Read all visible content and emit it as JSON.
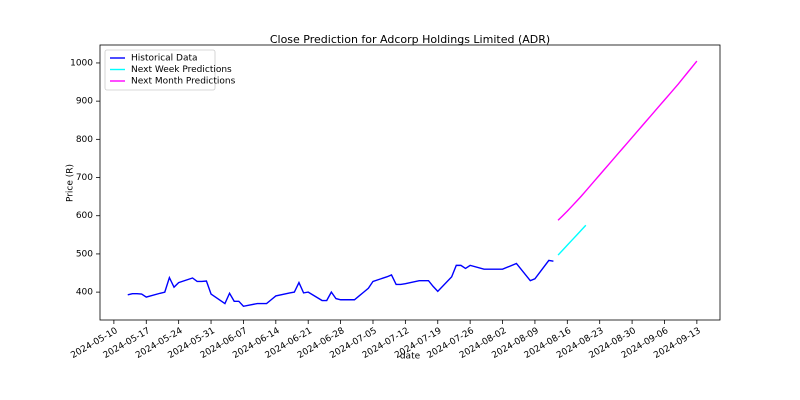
{
  "chart_data": {
    "type": "line",
    "title": "Close Prediction for Adcorp Holdings Limited (ADR)",
    "xlabel": "date",
    "ylabel": "Price (R)",
    "xlim": [
      "2024-05-07",
      "2024-09-18"
    ],
    "xticks": [
      "2024-05-10",
      "2024-05-17",
      "2024-05-24",
      "2024-05-31",
      "2024-06-07",
      "2024-06-14",
      "2024-06-21",
      "2024-06-28",
      "2024-07-05",
      "2024-07-12",
      "2024-07-19",
      "2024-07-26",
      "2024-08-02",
      "2024-08-09",
      "2024-08-16",
      "2024-08-23",
      "2024-08-30",
      "2024-09-06",
      "2024-09-13"
    ],
    "ylim": [
      327,
      1047
    ],
    "yticks": [
      400,
      500,
      600,
      700,
      800,
      900,
      1000
    ],
    "legend": "upper left",
    "series": [
      {
        "name": "Historical Data",
        "color": "#0000ff",
        "x": [
          "2024-05-13",
          "2024-05-14",
          "2024-05-15",
          "2024-05-16",
          "2024-05-17",
          "2024-05-20",
          "2024-05-21",
          "2024-05-22",
          "2024-05-23",
          "2024-05-24",
          "2024-05-27",
          "2024-05-28",
          "2024-05-29",
          "2024-05-30",
          "2024-05-31",
          "2024-06-03",
          "2024-06-04",
          "2024-06-05",
          "2024-06-06",
          "2024-06-07",
          "2024-06-10",
          "2024-06-11",
          "2024-06-12",
          "2024-06-13",
          "2024-06-14",
          "2024-06-17",
          "2024-06-18",
          "2024-06-19",
          "2024-06-20",
          "2024-06-21",
          "2024-06-24",
          "2024-06-25",
          "2024-06-26",
          "2024-06-27",
          "2024-06-28",
          "2024-07-01",
          "2024-07-02",
          "2024-07-03",
          "2024-07-04",
          "2024-07-05",
          "2024-07-08",
          "2024-07-09",
          "2024-07-10",
          "2024-07-11",
          "2024-07-12",
          "2024-07-15",
          "2024-07-16",
          "2024-07-17",
          "2024-07-18",
          "2024-07-19",
          "2024-07-22",
          "2024-07-23",
          "2024-07-24",
          "2024-07-25",
          "2024-07-26",
          "2024-07-29",
          "2024-07-30",
          "2024-07-31",
          "2024-08-01",
          "2024-08-02",
          "2024-08-05",
          "2024-08-06",
          "2024-08-07",
          "2024-08-08",
          "2024-08-09",
          "2024-08-12",
          "2024-08-13"
        ],
        "values": [
          393,
          396,
          396,
          395,
          387,
          397,
          400,
          438,
          413,
          425,
          437,
          428,
          428,
          429,
          395,
          370,
          397,
          376,
          376,
          363,
          370,
          370,
          370,
          380,
          390,
          398,
          400,
          425,
          398,
          400,
          378,
          378,
          400,
          383,
          380,
          380,
          390,
          400,
          410,
          428,
          440,
          445,
          420,
          420,
          422,
          430,
          430,
          430,
          415,
          402,
          440,
          470,
          470,
          462,
          470,
          460,
          460,
          460,
          460,
          460,
          475,
          460,
          445,
          430,
          435,
          483,
          481
        ]
      },
      {
        "name": "Next Week Predictions",
        "color": "#00ffff",
        "x": [
          "2024-08-14",
          "2024-08-15",
          "2024-08-16",
          "2024-08-17",
          "2024-08-18",
          "2024-08-19",
          "2024-08-20"
        ],
        "values": [
          497,
          510,
          523,
          536,
          549,
          562,
          575
        ]
      },
      {
        "name": "Next Month Predictions",
        "color": "#ff00ff",
        "x": [
          "2024-08-14",
          "2024-08-15",
          "2024-08-16",
          "2024-08-17",
          "2024-08-18",
          "2024-08-19",
          "2024-08-20",
          "2024-08-21",
          "2024-08-22",
          "2024-08-23",
          "2024-08-24",
          "2024-08-25",
          "2024-08-26",
          "2024-08-27",
          "2024-08-28",
          "2024-08-29",
          "2024-08-30",
          "2024-08-31",
          "2024-09-01",
          "2024-09-02",
          "2024-09-03",
          "2024-09-04",
          "2024-09-05",
          "2024-09-06",
          "2024-09-07",
          "2024-09-08",
          "2024-09-09",
          "2024-09-10",
          "2024-09-11",
          "2024-09-12",
          "2024-09-13"
        ],
        "values": [
          588,
          600,
          612,
          625,
          638,
          651,
          665,
          679,
          693,
          707,
          721,
          735,
          749,
          763,
          777,
          791,
          805,
          819,
          833,
          847,
          861,
          875,
          889,
          903,
          917,
          931,
          945,
          960,
          975,
          990,
          1005
        ]
      }
    ]
  }
}
